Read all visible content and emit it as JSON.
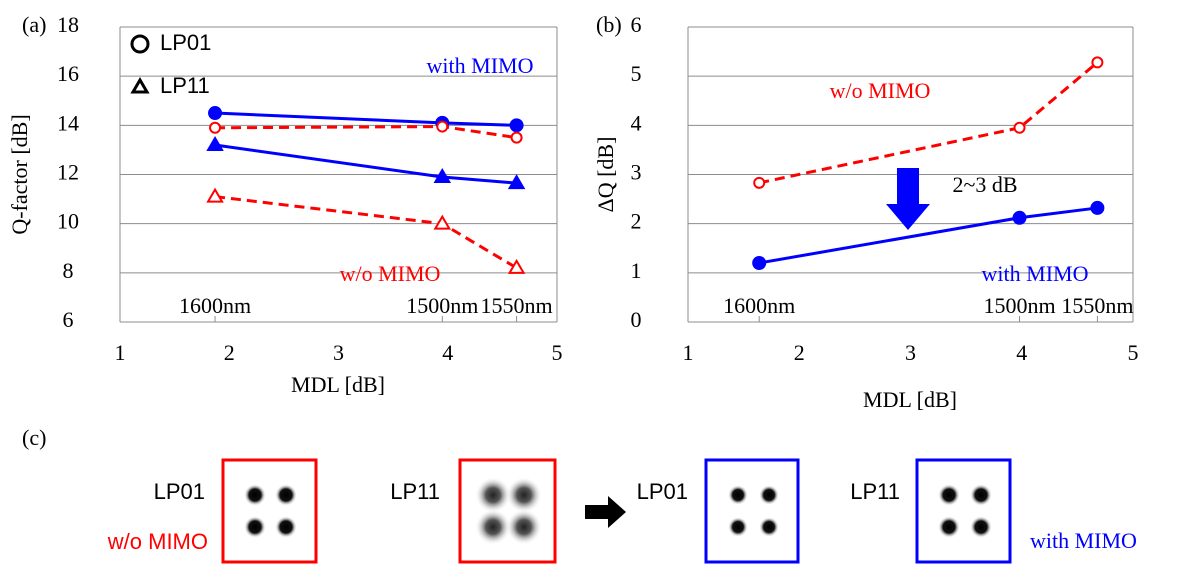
{
  "chart_data": [
    {
      "type": "line",
      "panel_label": "(a)",
      "xlabel": "MDL [dB]",
      "ylabel": "Q-factor [dB]",
      "x": [
        1.87,
        3.95,
        4.63
      ],
      "x_labels": [
        "1600nm",
        "1500nm",
        "1550nm"
      ],
      "xlim": [
        1,
        5
      ],
      "xticks": [
        1,
        2,
        3,
        4,
        5
      ],
      "ylim": [
        6,
        18
      ],
      "yticks": [
        6,
        8,
        10,
        12,
        14,
        16,
        18
      ],
      "grid": true,
      "legend": [
        {
          "name": "LP01",
          "marker": "circle"
        },
        {
          "name": "LP11",
          "marker": "triangle"
        }
      ],
      "series": [
        {
          "color": "#0000ff",
          "marker": "circle",
          "filled": true,
          "dashed": false,
          "values": [
            14.5,
            14.1,
            14.0
          ]
        },
        {
          "color": "#ff0000",
          "marker": "circle",
          "filled": false,
          "dashed": true,
          "values": [
            13.9,
            13.95,
            13.5
          ]
        },
        {
          "color": "#0000ff",
          "marker": "triangle",
          "filled": true,
          "dashed": false,
          "values": [
            13.2,
            11.9,
            11.65
          ]
        },
        {
          "color": "#ff0000",
          "marker": "triangle",
          "filled": false,
          "dashed": true,
          "values": [
            11.1,
            10.0,
            8.2
          ]
        }
      ],
      "annotations": [
        {
          "text": "with MIMO",
          "color": "#0000ff"
        },
        {
          "text": "w/o MIMO",
          "color": "#ff0000"
        }
      ]
    },
    {
      "type": "line",
      "panel_label": "(b)",
      "xlabel": "MDL [dB]",
      "ylabel": "ΔQ [dB]",
      "x": [
        1.64,
        3.98,
        4.68
      ],
      "x_labels": [
        "1600nm",
        "1500nm",
        "1550nm"
      ],
      "xlim": [
        1,
        5
      ],
      "xticks": [
        1,
        2,
        3,
        4,
        5
      ],
      "ylim": [
        0,
        6
      ],
      "yticks": [
        0,
        1,
        2,
        3,
        4,
        5,
        6
      ],
      "grid": true,
      "series": [
        {
          "color": "#ff0000",
          "marker": "circle",
          "filled": false,
          "dashed": true,
          "values": [
            2.83,
            3.95,
            5.28
          ]
        },
        {
          "color": "#0000ff",
          "marker": "circle",
          "filled": true,
          "dashed": false,
          "values": [
            1.2,
            2.12,
            2.32
          ]
        }
      ],
      "annotations": [
        {
          "text": "w/o MIMO",
          "color": "#ff0000"
        },
        {
          "text": "2~3 dB",
          "color": "#000000"
        },
        {
          "text": "with MIMO",
          "color": "#0000ff"
        }
      ]
    }
  ],
  "panel_c": {
    "panel_label": "(c)",
    "lp01_a": "LP01",
    "lp11_a": "LP11",
    "lp01_b": "LP01",
    "lp11_b": "LP11",
    "without": "w/o MIMO",
    "with": "with MIMO"
  }
}
